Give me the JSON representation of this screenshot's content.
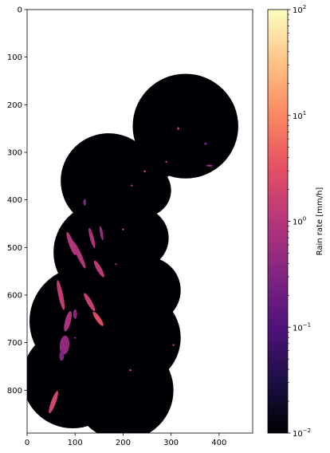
{
  "chart_data": {
    "type": "heatmap",
    "title": "",
    "xlabel": "",
    "ylabel": "",
    "xlim": [
      0,
      470
    ],
    "ylim": [
      890,
      0
    ],
    "x_ticks": [
      0,
      100,
      200,
      300,
      400
    ],
    "y_ticks": [
      0,
      100,
      200,
      300,
      400,
      500,
      600,
      700,
      800
    ],
    "background_outside_coverage": "#ffffff",
    "no_rain_color": "#000004",
    "coverage_disks": [
      {
        "cx": 330,
        "cy": 245,
        "r": 110
      },
      {
        "cx": 265,
        "cy": 310,
        "r": 50
      },
      {
        "cx": 170,
        "cy": 360,
        "r": 100
      },
      {
        "cx": 245,
        "cy": 380,
        "r": 55
      },
      {
        "cx": 160,
        "cy": 510,
        "r": 105
      },
      {
        "cx": 230,
        "cy": 480,
        "r": 65
      },
      {
        "cx": 250,
        "cy": 590,
        "r": 70
      },
      {
        "cx": 120,
        "cy": 655,
        "r": 115
      },
      {
        "cx": 220,
        "cy": 690,
        "r": 100
      },
      {
        "cx": 95,
        "cy": 775,
        "r": 105
      },
      {
        "cx": 200,
        "cy": 800,
        "r": 105
      }
    ],
    "rain_features": [
      {
        "x": 92,
        "y": 492,
        "rx": 5,
        "ry": 26,
        "angle": -20,
        "rain_rate": 1.0
      },
      {
        "x": 108,
        "y": 515,
        "rx": 5,
        "ry": 32,
        "angle": -25,
        "rain_rate": 0.9
      },
      {
        "x": 135,
        "y": 480,
        "rx": 4,
        "ry": 22,
        "angle": -15,
        "rain_rate": 0.8
      },
      {
        "x": 155,
        "y": 470,
        "rx": 3,
        "ry": 15,
        "angle": -10,
        "rain_rate": 0.5
      },
      {
        "x": 150,
        "y": 545,
        "rx": 5,
        "ry": 20,
        "angle": -30,
        "rain_rate": 1.2
      },
      {
        "x": 70,
        "y": 600,
        "rx": 5,
        "ry": 32,
        "angle": -12,
        "rain_rate": 1.3
      },
      {
        "x": 85,
        "y": 655,
        "rx": 6,
        "ry": 22,
        "angle": 15,
        "rain_rate": 0.8
      },
      {
        "x": 130,
        "y": 615,
        "rx": 5,
        "ry": 22,
        "angle": -30,
        "rain_rate": 1.5
      },
      {
        "x": 148,
        "y": 650,
        "rx": 5,
        "ry": 18,
        "angle": -35,
        "rain_rate": 2.5
      },
      {
        "x": 100,
        "y": 640,
        "rx": 4,
        "ry": 10,
        "angle": 0,
        "rain_rate": 0.4
      },
      {
        "x": 78,
        "y": 705,
        "rx": 10,
        "ry": 20,
        "angle": 5,
        "rain_rate": 0.45
      },
      {
        "x": 72,
        "y": 728,
        "rx": 5,
        "ry": 10,
        "angle": 0,
        "rain_rate": 0.3
      },
      {
        "x": 55,
        "y": 825,
        "rx": 5,
        "ry": 25,
        "angle": 20,
        "rain_rate": 2.0
      },
      {
        "x": 100,
        "y": 690,
        "rx": 2,
        "ry": 2,
        "angle": 0,
        "rain_rate": 0.4
      },
      {
        "x": 120,
        "y": 405,
        "rx": 3,
        "ry": 7,
        "angle": 0,
        "rain_rate": 0.3
      },
      {
        "x": 380,
        "y": 328,
        "rx": 7,
        "ry": 2,
        "angle": 0,
        "rain_rate": 0.5
      },
      {
        "x": 372,
        "y": 282,
        "rx": 3,
        "ry": 2,
        "angle": 0,
        "rain_rate": 0.3
      },
      {
        "x": 315,
        "y": 250,
        "rx": 2,
        "ry": 3,
        "angle": 0,
        "rain_rate": 2.0
      },
      {
        "x": 290,
        "y": 320,
        "rx": 2,
        "ry": 2,
        "angle": 0,
        "rain_rate": 1.5
      },
      {
        "x": 245,
        "y": 340,
        "rx": 2,
        "ry": 2,
        "angle": 0,
        "rain_rate": 3.0
      },
      {
        "x": 200,
        "y": 462,
        "rx": 2,
        "ry": 2,
        "angle": 0,
        "rain_rate": 2.0
      },
      {
        "x": 218,
        "y": 370,
        "rx": 2,
        "ry": 2,
        "angle": 0,
        "rain_rate": 1.0
      },
      {
        "x": 305,
        "y": 705,
        "rx": 2,
        "ry": 2,
        "angle": 0,
        "rain_rate": 2.0
      },
      {
        "x": 215,
        "y": 758,
        "rx": 2,
        "ry": 2,
        "angle": 0,
        "rain_rate": 3.0
      },
      {
        "x": 185,
        "y": 535,
        "rx": 2,
        "ry": 2,
        "angle": 0,
        "rain_rate": 0.5
      }
    ],
    "colorbar": {
      "label": "Rain rate [mm/h]",
      "scale": "log",
      "range": [
        0.01,
        100
      ],
      "ticks": [
        {
          "value": 0.01,
          "base": "10",
          "exp": "−2"
        },
        {
          "value": 0.1,
          "base": "10",
          "exp": "−1"
        },
        {
          "value": 1,
          "base": "10",
          "exp": "0"
        },
        {
          "value": 10,
          "base": "10",
          "exp": "1"
        },
        {
          "value": 100,
          "base": "10",
          "exp": "2"
        }
      ],
      "colormap": "magma",
      "colormap_stops": [
        "#000004",
        "#1c1044",
        "#4f127b",
        "#812581",
        "#b5367a",
        "#e55064",
        "#fb8761",
        "#fec287",
        "#fcfdbf"
      ]
    }
  }
}
